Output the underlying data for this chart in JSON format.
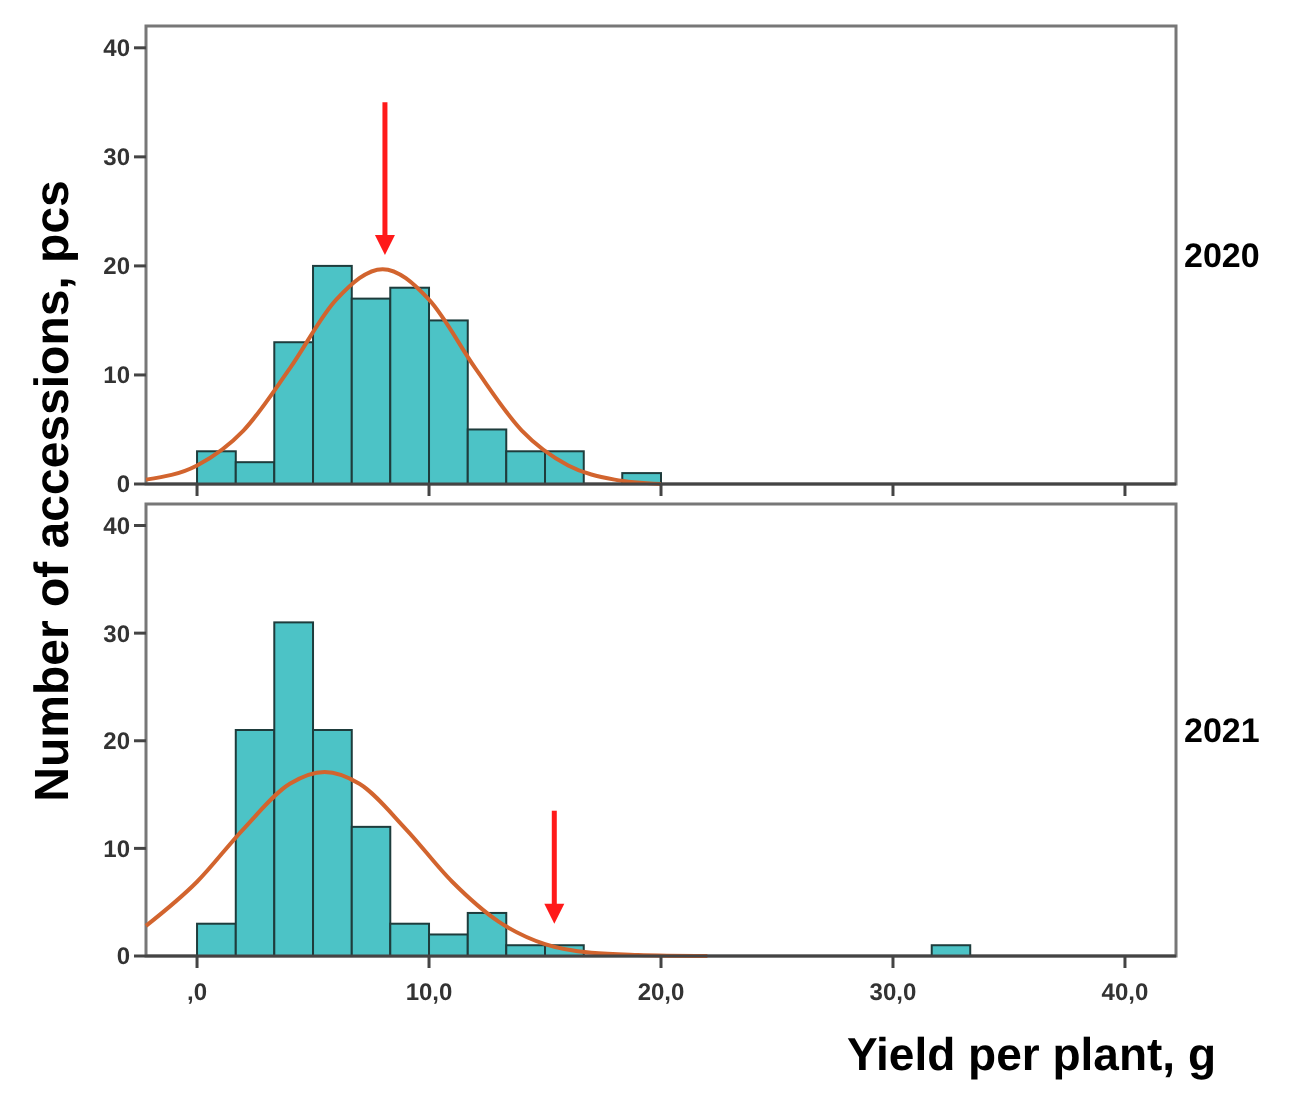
{
  "chart_data": [
    {
      "type": "histogram",
      "title": "2020",
      "ylabel": "Number of accessions, pcs",
      "xlim": [
        -2.2,
        42.2
      ],
      "ylim": [
        0,
        42
      ],
      "xticks": [
        {
          "value": 0,
          "label": null
        },
        {
          "value": 10,
          "label": null
        },
        {
          "value": 20,
          "label": null
        },
        {
          "value": 30,
          "label": null
        },
        {
          "value": 40,
          "label": null
        }
      ],
      "yticks": [
        0,
        10,
        20,
        30,
        40
      ],
      "tick_labels": "y",
      "grid": false,
      "series": [
        {
          "color": "#4cc3c6",
          "bins": [
            0,
            1.67,
            3.33,
            5,
            6.67,
            8.33,
            10,
            11.67,
            13.33,
            15,
            16.67,
            18.33,
            20
          ],
          "values": [
            3,
            2,
            13,
            20,
            17,
            18,
            15,
            5,
            3,
            3,
            0,
            1
          ]
        },
        {
          "type": "line",
          "color": "#d2642e",
          "x": [
            -2.2,
            0,
            2,
            4,
            6,
            8,
            10,
            12,
            14,
            16,
            18,
            20
          ],
          "values": [
            0.4,
            1.7,
            4.9,
            10.6,
            16.9,
            19.7,
            16.9,
            10.6,
            4.9,
            1.7,
            0.4,
            0
          ]
        }
      ]
    },
    {
      "type": "histogram",
      "title": "2021",
      "xlabel": "Yield per plant, g",
      "xlim": [
        -2.2,
        42.2
      ],
      "ylim": [
        0,
        42
      ],
      "xticks": [
        {
          "value": 0,
          "label": ",0"
        },
        {
          "value": 10,
          "label": "10,0"
        },
        {
          "value": 20,
          "label": "20,0"
        },
        {
          "value": 30,
          "label": "30,0"
        },
        {
          "value": 40,
          "label": "40,0"
        }
      ],
      "yticks": [
        0,
        10,
        20,
        30,
        40
      ],
      "grid": false,
      "series": [
        {
          "color": "#4cc3c6",
          "bins": [
            0,
            1.67,
            3.33,
            5,
            6.67,
            8.33,
            10,
            11.67,
            13.33,
            15,
            16.67,
            18.33,
            20,
            21.67,
            23.33,
            25,
            26.67,
            28.33,
            30,
            31.67,
            33.33
          ],
          "values": [
            3,
            21,
            31,
            21,
            12,
            3,
            2,
            4,
            1,
            1,
            0,
            0,
            0,
            0,
            0,
            0,
            0,
            0,
            0,
            1
          ]
        },
        {
          "type": "line",
          "color": "#d2642e",
          "x": [
            -2.2,
            0,
            2,
            4,
            5.5,
            7,
            9,
            11,
            13,
            15,
            17,
            19,
            22
          ],
          "values": [
            2.8,
            6.9,
            11.8,
            16,
            17.1,
            16,
            11.8,
            6.9,
            3.2,
            1.1,
            0.3,
            0.1,
            0
          ]
        }
      ]
    }
  ]
}
